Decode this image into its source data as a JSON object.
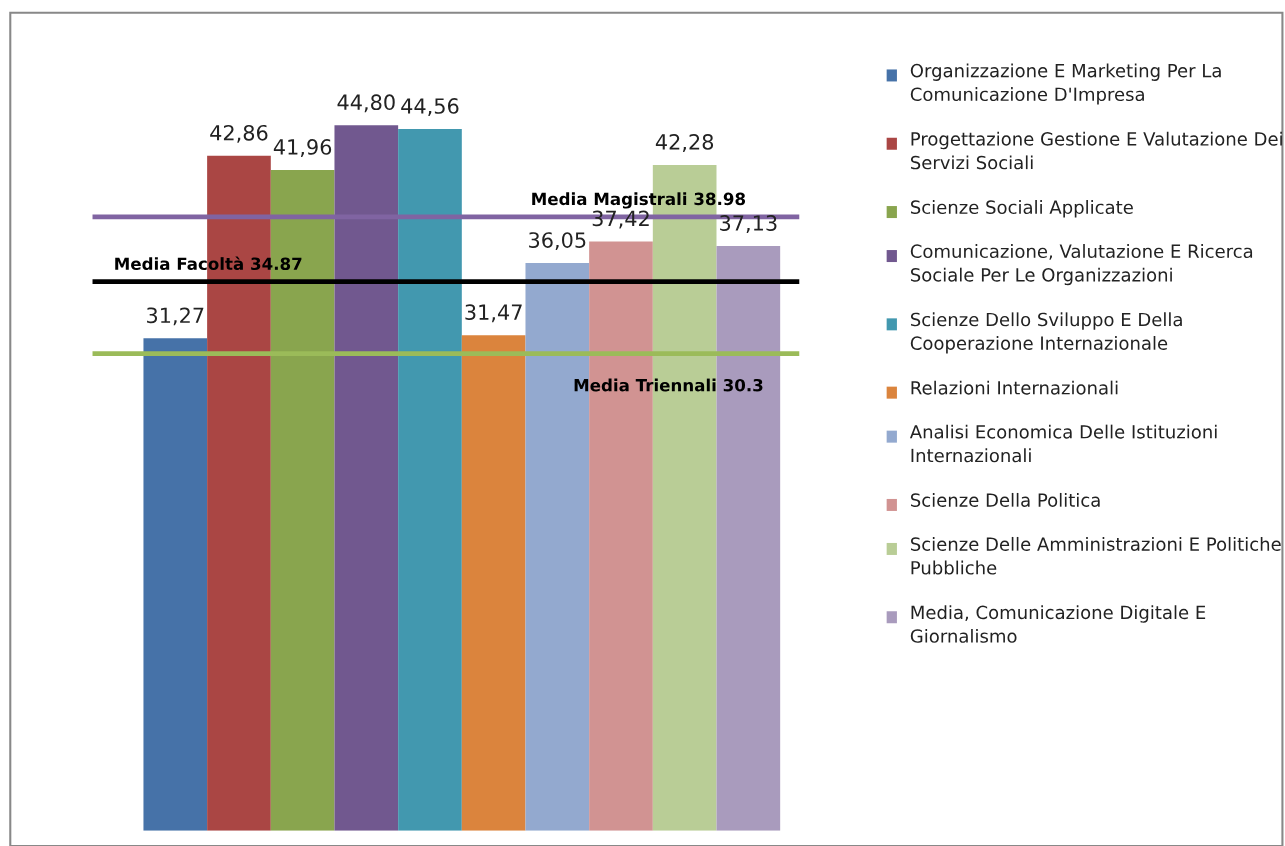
{
  "chart_data": {
    "type": "bar",
    "categories": [
      null
    ],
    "ylim": [
      0,
      52
    ],
    "tick_labels": false,
    "grid": false,
    "legend": "right",
    "data_labels": true,
    "series": [
      {
        "name": "Organizzazione E Marketing Per La Comunicazione D'Impresa",
        "color": "#4672a8",
        "values": [
          31.27
        ],
        "value_labels": [
          "31,27"
        ]
      },
      {
        "name": "Progettazione Gestione E Valutazione Dei Servizi Sociali",
        "color": "#aa4644",
        "values": [
          42.86
        ],
        "value_labels": [
          "42,86"
        ]
      },
      {
        "name": "Scienze Sociali Applicate",
        "color": "#89a54e",
        "values": [
          41.96
        ],
        "value_labels": [
          "41,96"
        ]
      },
      {
        "name": "Comunicazione, Valutazione E Ricerca Sociale Per Le Organizzazioni",
        "color": "#71588f",
        "values": [
          44.8
        ],
        "value_labels": [
          "44,80"
        ]
      },
      {
        "name": "Scienze Dello Sviluppo E Della Cooperazione Internazionale",
        "color": "#4298af",
        "values": [
          44.56
        ],
        "value_labels": [
          "44,56"
        ]
      },
      {
        "name": "Relazioni Internazionali",
        "color": "#db843d",
        "values": [
          31.47
        ],
        "value_labels": [
          "31,47"
        ]
      },
      {
        "name": "Analisi Economica Delle Istituzioni Internazionali",
        "color": "#93a9cf",
        "values": [
          36.05
        ],
        "value_labels": [
          "36,05"
        ]
      },
      {
        "name": "Scienze Della Politica",
        "color": "#d19392",
        "values": [
          37.42
        ],
        "value_labels": [
          "37,42"
        ]
      },
      {
        "name": "Scienze Delle Amministrazioni E Politiche Pubbliche",
        "color": "#b9cd96",
        "values": [
          42.28
        ],
        "value_labels": [
          "42,28"
        ]
      },
      {
        "name": "Media, Comunicazione Digitale E Giornalismo",
        "color": "#a99bbd",
        "values": [
          37.13
        ],
        "value_labels": [
          "37,13"
        ]
      }
    ],
    "ref_lines": [
      {
        "axis": "y",
        "value": 38.98,
        "label": "Media Magistrali 38.98",
        "color": "#8064a2"
      },
      {
        "axis": "y",
        "value": 34.87,
        "label": "Media Facoltà 34.87",
        "color": "#000000"
      },
      {
        "axis": "y",
        "value": 30.3,
        "label": "Media Triennali 30.3",
        "color": "#9bbb59"
      }
    ]
  }
}
